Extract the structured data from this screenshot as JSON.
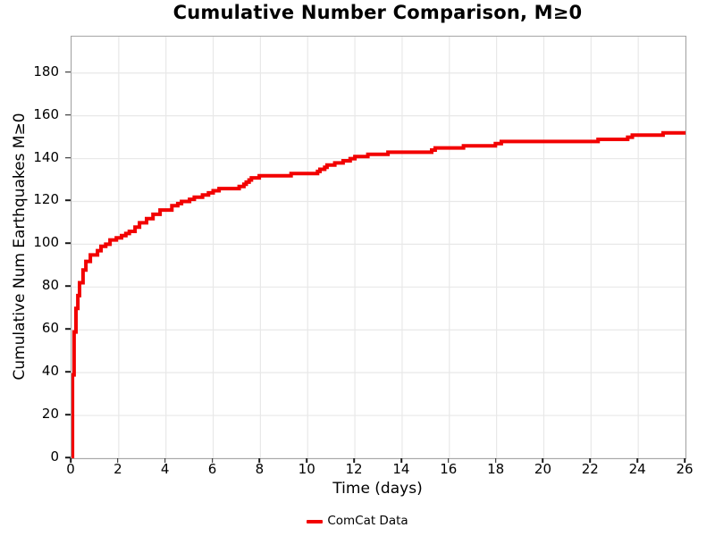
{
  "title": "Cumulative Number Comparison, M≥0",
  "axes": {
    "xlabel": "Time (days)",
    "ylabel": "Cumulative Num Earthquakes M≥0"
  },
  "legend": {
    "entries": [
      {
        "label": "ComCat Data",
        "color": "#f20000"
      }
    ],
    "position": "bottom-center"
  },
  "colors": {
    "line": "#f20000",
    "grid": "#e8e8e8",
    "axis_border": "#a6a6a6",
    "tick": "#1a1a1a",
    "text": "#000000",
    "background": "#ffffff"
  },
  "chart_data": {
    "type": "line",
    "line_style": "step-after",
    "title": "Cumulative Number Comparison, M≥0",
    "xlabel": "Time (days)",
    "ylabel": "Cumulative Num Earthquakes M≥0",
    "xlim": [
      0,
      26
    ],
    "ylim": [
      0,
      197
    ],
    "x_ticks": [
      0,
      2,
      4,
      6,
      8,
      10,
      12,
      14,
      16,
      18,
      20,
      22,
      24,
      26
    ],
    "y_ticks": [
      0,
      20,
      40,
      60,
      80,
      100,
      120,
      140,
      160,
      180
    ],
    "grid": true,
    "legend_position": "bottom-center",
    "series": [
      {
        "name": "ComCat Data",
        "color": "#f20000",
        "line_width": 4,
        "points": [
          [
            0.0,
            0
          ],
          [
            0.04,
            39
          ],
          [
            0.11,
            59
          ],
          [
            0.19,
            70
          ],
          [
            0.27,
            76
          ],
          [
            0.34,
            82
          ],
          [
            0.49,
            88
          ],
          [
            0.61,
            92
          ],
          [
            0.8,
            95
          ],
          [
            1.1,
            97
          ],
          [
            1.25,
            99
          ],
          [
            1.45,
            100
          ],
          [
            1.63,
            102
          ],
          [
            1.9,
            103
          ],
          [
            2.12,
            104
          ],
          [
            2.3,
            105
          ],
          [
            2.45,
            106
          ],
          [
            2.69,
            108
          ],
          [
            2.88,
            110
          ],
          [
            3.18,
            112
          ],
          [
            3.45,
            114
          ],
          [
            3.75,
            116
          ],
          [
            4.25,
            118
          ],
          [
            4.5,
            119
          ],
          [
            4.66,
            120
          ],
          [
            5.0,
            121
          ],
          [
            5.2,
            122
          ],
          [
            5.55,
            123
          ],
          [
            5.8,
            124
          ],
          [
            6.0,
            125
          ],
          [
            6.25,
            126
          ],
          [
            7.1,
            127
          ],
          [
            7.3,
            128
          ],
          [
            7.4,
            129
          ],
          [
            7.52,
            130
          ],
          [
            7.62,
            131
          ],
          [
            7.95,
            132
          ],
          [
            9.3,
            133
          ],
          [
            10.42,
            134
          ],
          [
            10.52,
            135
          ],
          [
            10.72,
            136
          ],
          [
            10.82,
            137
          ],
          [
            11.15,
            138
          ],
          [
            11.5,
            139
          ],
          [
            11.8,
            140
          ],
          [
            12.0,
            141
          ],
          [
            12.55,
            142
          ],
          [
            13.4,
            143
          ],
          [
            15.25,
            144
          ],
          [
            15.4,
            145
          ],
          [
            16.6,
            146
          ],
          [
            17.95,
            147
          ],
          [
            18.2,
            148
          ],
          [
            22.3,
            149
          ],
          [
            23.55,
            150
          ],
          [
            23.75,
            151
          ],
          [
            25.05,
            152
          ],
          [
            26.0,
            152
          ]
        ]
      }
    ]
  }
}
